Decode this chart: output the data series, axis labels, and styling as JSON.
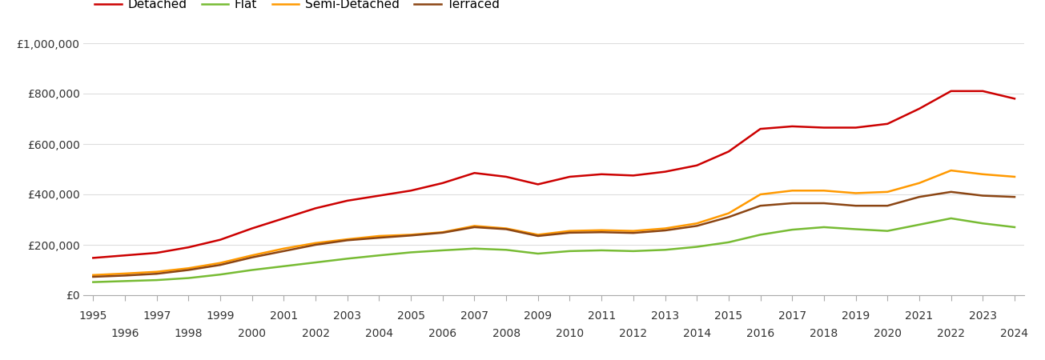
{
  "years": [
    1995,
    1996,
    1997,
    1998,
    1999,
    2000,
    2001,
    2002,
    2003,
    2004,
    2005,
    2006,
    2007,
    2008,
    2009,
    2010,
    2011,
    2012,
    2013,
    2014,
    2015,
    2016,
    2017,
    2018,
    2019,
    2020,
    2021,
    2022,
    2023,
    2024
  ],
  "detached": [
    148000,
    158000,
    168000,
    190000,
    220000,
    265000,
    305000,
    345000,
    375000,
    395000,
    415000,
    445000,
    485000,
    470000,
    440000,
    470000,
    480000,
    475000,
    490000,
    515000,
    570000,
    660000,
    670000,
    665000,
    665000,
    680000,
    740000,
    810000,
    810000,
    780000
  ],
  "flat": [
    52000,
    56000,
    60000,
    68000,
    82000,
    100000,
    115000,
    130000,
    145000,
    158000,
    170000,
    178000,
    185000,
    180000,
    165000,
    175000,
    178000,
    175000,
    180000,
    192000,
    210000,
    240000,
    260000,
    270000,
    262000,
    255000,
    280000,
    305000,
    285000,
    270000
  ],
  "semi_detached": [
    80000,
    86000,
    93000,
    107000,
    128000,
    158000,
    185000,
    207000,
    222000,
    235000,
    240000,
    250000,
    275000,
    265000,
    240000,
    255000,
    258000,
    255000,
    265000,
    285000,
    325000,
    400000,
    415000,
    415000,
    405000,
    410000,
    445000,
    495000,
    480000,
    470000
  ],
  "terraced": [
    73000,
    78000,
    85000,
    100000,
    120000,
    150000,
    175000,
    200000,
    218000,
    228000,
    237000,
    248000,
    270000,
    262000,
    235000,
    248000,
    250000,
    247000,
    257000,
    275000,
    310000,
    355000,
    365000,
    365000,
    355000,
    355000,
    390000,
    410000,
    395000,
    390000
  ],
  "colors": {
    "detached": "#cc0000",
    "flat": "#77bb33",
    "semi_detached": "#ff9900",
    "terraced": "#8B4513"
  },
  "legend_labels": [
    "Detached",
    "Flat",
    "Semi-Detached",
    "Terraced"
  ],
  "ylim": [
    0,
    1000000
  ],
  "yticks": [
    0,
    200000,
    400000,
    600000,
    800000,
    1000000
  ],
  "ytick_labels": [
    "£0",
    "£200,000",
    "£400,000",
    "£600,000",
    "£800,000",
    "£1,000,000"
  ],
  "background_color": "#ffffff",
  "grid_color": "#dddddd",
  "line_width": 1.8
}
